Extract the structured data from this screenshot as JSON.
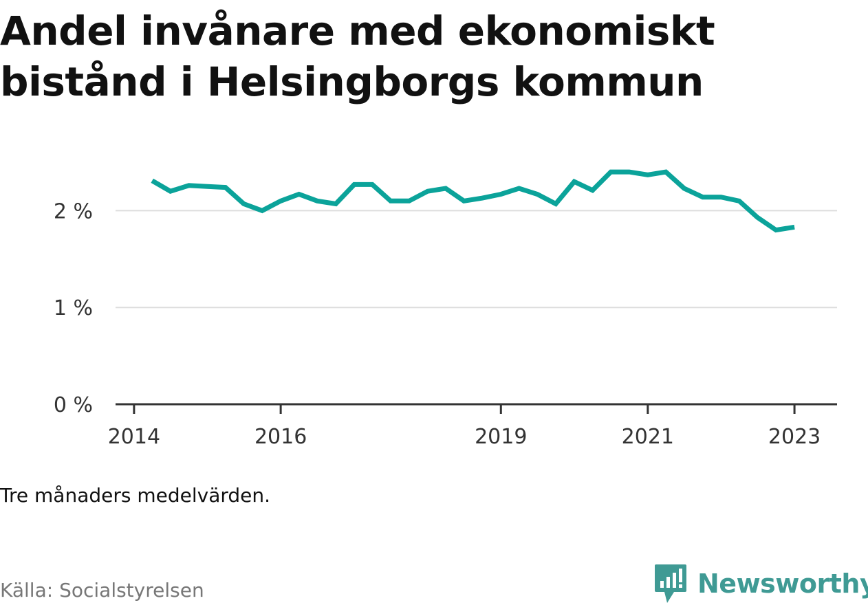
{
  "header": {
    "title": "Andel invånare med ekonomiskt bistånd i Helsingborgs kommun"
  },
  "footer": {
    "note": "Tre månaders medelvärden.",
    "source": "Källa: Socialstyrelsen",
    "brand": "Newsworthy"
  },
  "colors": {
    "line": "#0ba39a",
    "grid": "#dddddd",
    "axis": "#333333",
    "brand": "#3f9a94"
  },
  "icons": {
    "brand": "newsworthy-logo-icon"
  },
  "chart_data": {
    "type": "line",
    "title": "Andel invånare med ekonomiskt bistånd i Helsingborgs kommun",
    "xlabel": "",
    "ylabel": "",
    "ylim": [
      0,
      2.5
    ],
    "xlim": [
      "2013-10-01",
      "2023-08-01"
    ],
    "yticks": [
      {
        "value": 0,
        "label": "0 %"
      },
      {
        "value": 1,
        "label": "1 %"
      },
      {
        "value": 2,
        "label": "2 %"
      }
    ],
    "xticks": [
      {
        "value": "2014-01-01",
        "label": "2014"
      },
      {
        "value": "2016-01-01",
        "label": "2016"
      },
      {
        "value": "2019-01-01",
        "label": "2019"
      },
      {
        "value": "2021-01-01",
        "label": "2021"
      },
      {
        "value": "2023-01-01",
        "label": "2023"
      }
    ],
    "grid": true,
    "legend": "none",
    "series": [
      {
        "name": "",
        "points": [
          {
            "x": "2014-04-01",
            "y": 2.31
          },
          {
            "x": "2014-07-01",
            "y": 2.2
          },
          {
            "x": "2014-10-01",
            "y": 2.26
          },
          {
            "x": "2015-01-01",
            "y": 2.25
          },
          {
            "x": "2015-04-01",
            "y": 2.24
          },
          {
            "x": "2015-07-01",
            "y": 2.07
          },
          {
            "x": "2015-10-01",
            "y": 2.0
          },
          {
            "x": "2016-01-01",
            "y": 2.1
          },
          {
            "x": "2016-04-01",
            "y": 2.17
          },
          {
            "x": "2016-07-01",
            "y": 2.1
          },
          {
            "x": "2016-10-01",
            "y": 2.07
          },
          {
            "x": "2017-01-01",
            "y": 2.27
          },
          {
            "x": "2017-04-01",
            "y": 2.27
          },
          {
            "x": "2017-07-01",
            "y": 2.1
          },
          {
            "x": "2017-10-01",
            "y": 2.1
          },
          {
            "x": "2018-01-01",
            "y": 2.2
          },
          {
            "x": "2018-04-01",
            "y": 2.23
          },
          {
            "x": "2018-07-01",
            "y": 2.1
          },
          {
            "x": "2018-10-01",
            "y": 2.13
          },
          {
            "x": "2019-01-01",
            "y": 2.17
          },
          {
            "x": "2019-04-01",
            "y": 2.23
          },
          {
            "x": "2019-07-01",
            "y": 2.17
          },
          {
            "x": "2019-10-01",
            "y": 2.07
          },
          {
            "x": "2020-01-01",
            "y": 2.3
          },
          {
            "x": "2020-04-01",
            "y": 2.21
          },
          {
            "x": "2020-07-01",
            "y": 2.4
          },
          {
            "x": "2020-10-01",
            "y": 2.4
          },
          {
            "x": "2021-01-01",
            "y": 2.37
          },
          {
            "x": "2021-04-01",
            "y": 2.4
          },
          {
            "x": "2021-07-01",
            "y": 2.23
          },
          {
            "x": "2021-10-01",
            "y": 2.14
          },
          {
            "x": "2022-01-01",
            "y": 2.14
          },
          {
            "x": "2022-04-01",
            "y": 2.1
          },
          {
            "x": "2022-07-01",
            "y": 1.93
          },
          {
            "x": "2022-10-01",
            "y": 1.8
          },
          {
            "x": "2023-01-01",
            "y": 1.83
          }
        ]
      }
    ]
  }
}
